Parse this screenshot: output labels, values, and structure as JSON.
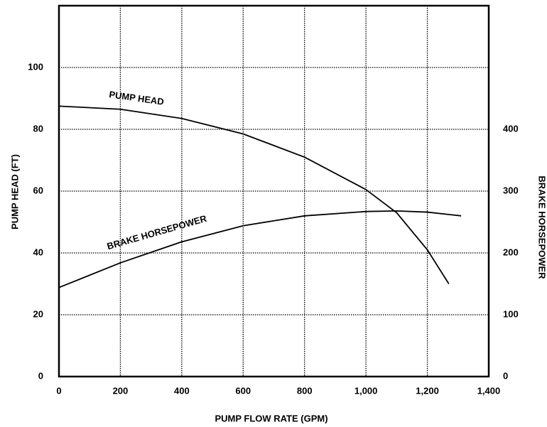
{
  "chart_data": {
    "type": "line",
    "xlabel": "PUMP FLOW RATE (GPM)",
    "ylabel": "PUMP HEAD (FT)",
    "y2label": "BRAKE HORSEPOWER",
    "xlim": [
      0,
      1400
    ],
    "xticks": [
      0,
      200,
      400,
      600,
      800,
      {
        "value": 1000,
        "label": "1,000"
      },
      {
        "value": 1200,
        "label": "1,200"
      },
      {
        "value": 1400,
        "label": "1,400"
      }
    ],
    "ylim": [
      0,
      120
    ],
    "yticks": [
      0,
      20,
      40,
      60,
      80,
      100
    ],
    "y2lim": [
      0,
      600
    ],
    "y2ticks": [
      0,
      100,
      200,
      300,
      400
    ],
    "grid": true,
    "series": [
      {
        "name": "PUMP HEAD",
        "color": "#000000",
        "x": [
          0,
          200,
          400,
          600,
          800,
          1000,
          1100,
          1200,
          1270
        ],
        "values": [
          87.5,
          86.5,
          83.5,
          78.5,
          71,
          60.5,
          53,
          41,
          30
        ]
      },
      {
        "name": "BRAKE HORSEPOWER",
        "color": "#000000",
        "axis": "y2",
        "x": [
          0,
          200,
          400,
          600,
          800,
          1000,
          1100,
          1200,
          1310
        ],
        "values": [
          144,
          184,
          218,
          244,
          260,
          267,
          268,
          266,
          260
        ]
      }
    ]
  }
}
